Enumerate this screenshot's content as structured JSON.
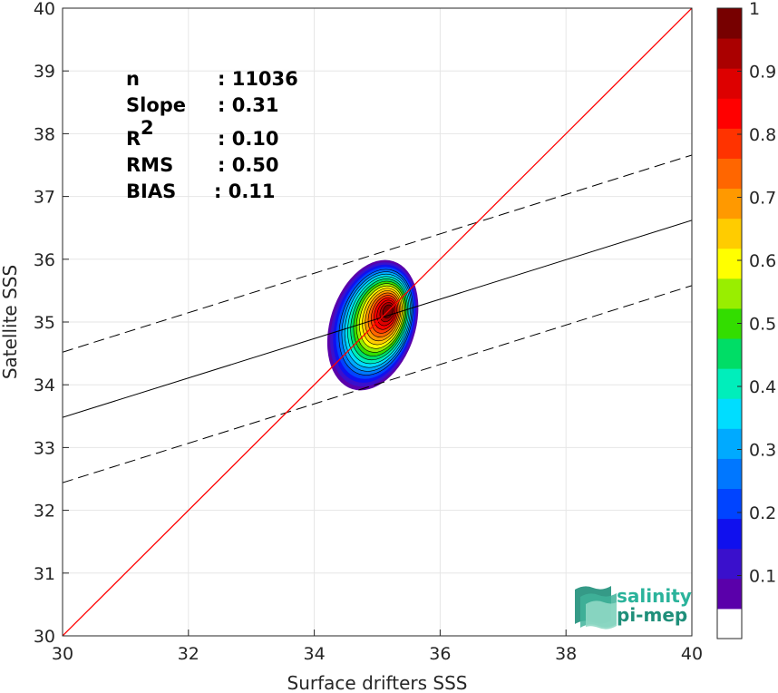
{
  "chart_data": {
    "type": "scatter",
    "subtype": "density-contour",
    "xlabel": "Surface drifters SSS",
    "ylabel": "Satellite SSS",
    "xlim": [
      30,
      40
    ],
    "ylim": [
      30,
      40
    ],
    "x_ticks": [
      "30",
      "32",
      "34",
      "36",
      "38",
      "40"
    ],
    "y_ticks": [
      "30",
      "31",
      "32",
      "33",
      "34",
      "35",
      "36",
      "37",
      "38",
      "39",
      "40"
    ],
    "grid": true,
    "stats": [
      {
        "label": "n",
        "value": ": 11036"
      },
      {
        "label": "Slope",
        "value": ": 0.31"
      },
      {
        "label": "R",
        "sup": "2",
        "value": ": 0.10"
      },
      {
        "label": "RMS",
        "value": ": 0.50"
      },
      {
        "label": "BIAS",
        "value": ": 0.11"
      }
    ],
    "lines": {
      "identity": {
        "from": [
          30,
          30
        ],
        "to": [
          40,
          40
        ],
        "color": "#ff0000"
      },
      "regression": {
        "from": [
          30,
          33.48
        ],
        "to": [
          40,
          36.62
        ],
        "color": "#000000"
      },
      "upper_bound": {
        "from": [
          30,
          34.52
        ],
        "to": [
          40,
          37.66
        ],
        "dash": true
      },
      "lower_bound": {
        "from": [
          30,
          32.44
        ],
        "to": [
          40,
          35.58
        ],
        "dash": true
      }
    },
    "density_peak": {
      "x": 35.18,
      "y": 35.18
    },
    "contour_levels": [
      0.05,
      0.1,
      0.15,
      0.2,
      0.25,
      0.3,
      0.35,
      0.4,
      0.45,
      0.5,
      0.55,
      0.6,
      0.65,
      0.7,
      0.75,
      0.8,
      0.85,
      0.9,
      0.95
    ],
    "colorbar": {
      "ticks": [
        "0.1",
        "0.2",
        "0.3",
        "0.4",
        "0.5",
        "0.6",
        "0.7",
        "0.8",
        "0.9",
        "1"
      ],
      "range": [
        0,
        1
      ],
      "colors": [
        "#ffffff",
        "#5a00aa",
        "#3a10cc",
        "#1010ee",
        "#0044ff",
        "#0077ff",
        "#00aaff",
        "#00ddff",
        "#00eebb",
        "#00dd66",
        "#33dd00",
        "#99ee00",
        "#ffff00",
        "#ffcc00",
        "#ff9900",
        "#ff6600",
        "#ff3300",
        "#ff0000",
        "#dd0000",
        "#aa0000",
        "#770000"
      ]
    }
  },
  "logo": {
    "line1": "salinity",
    "line2": "pi-mep"
  }
}
